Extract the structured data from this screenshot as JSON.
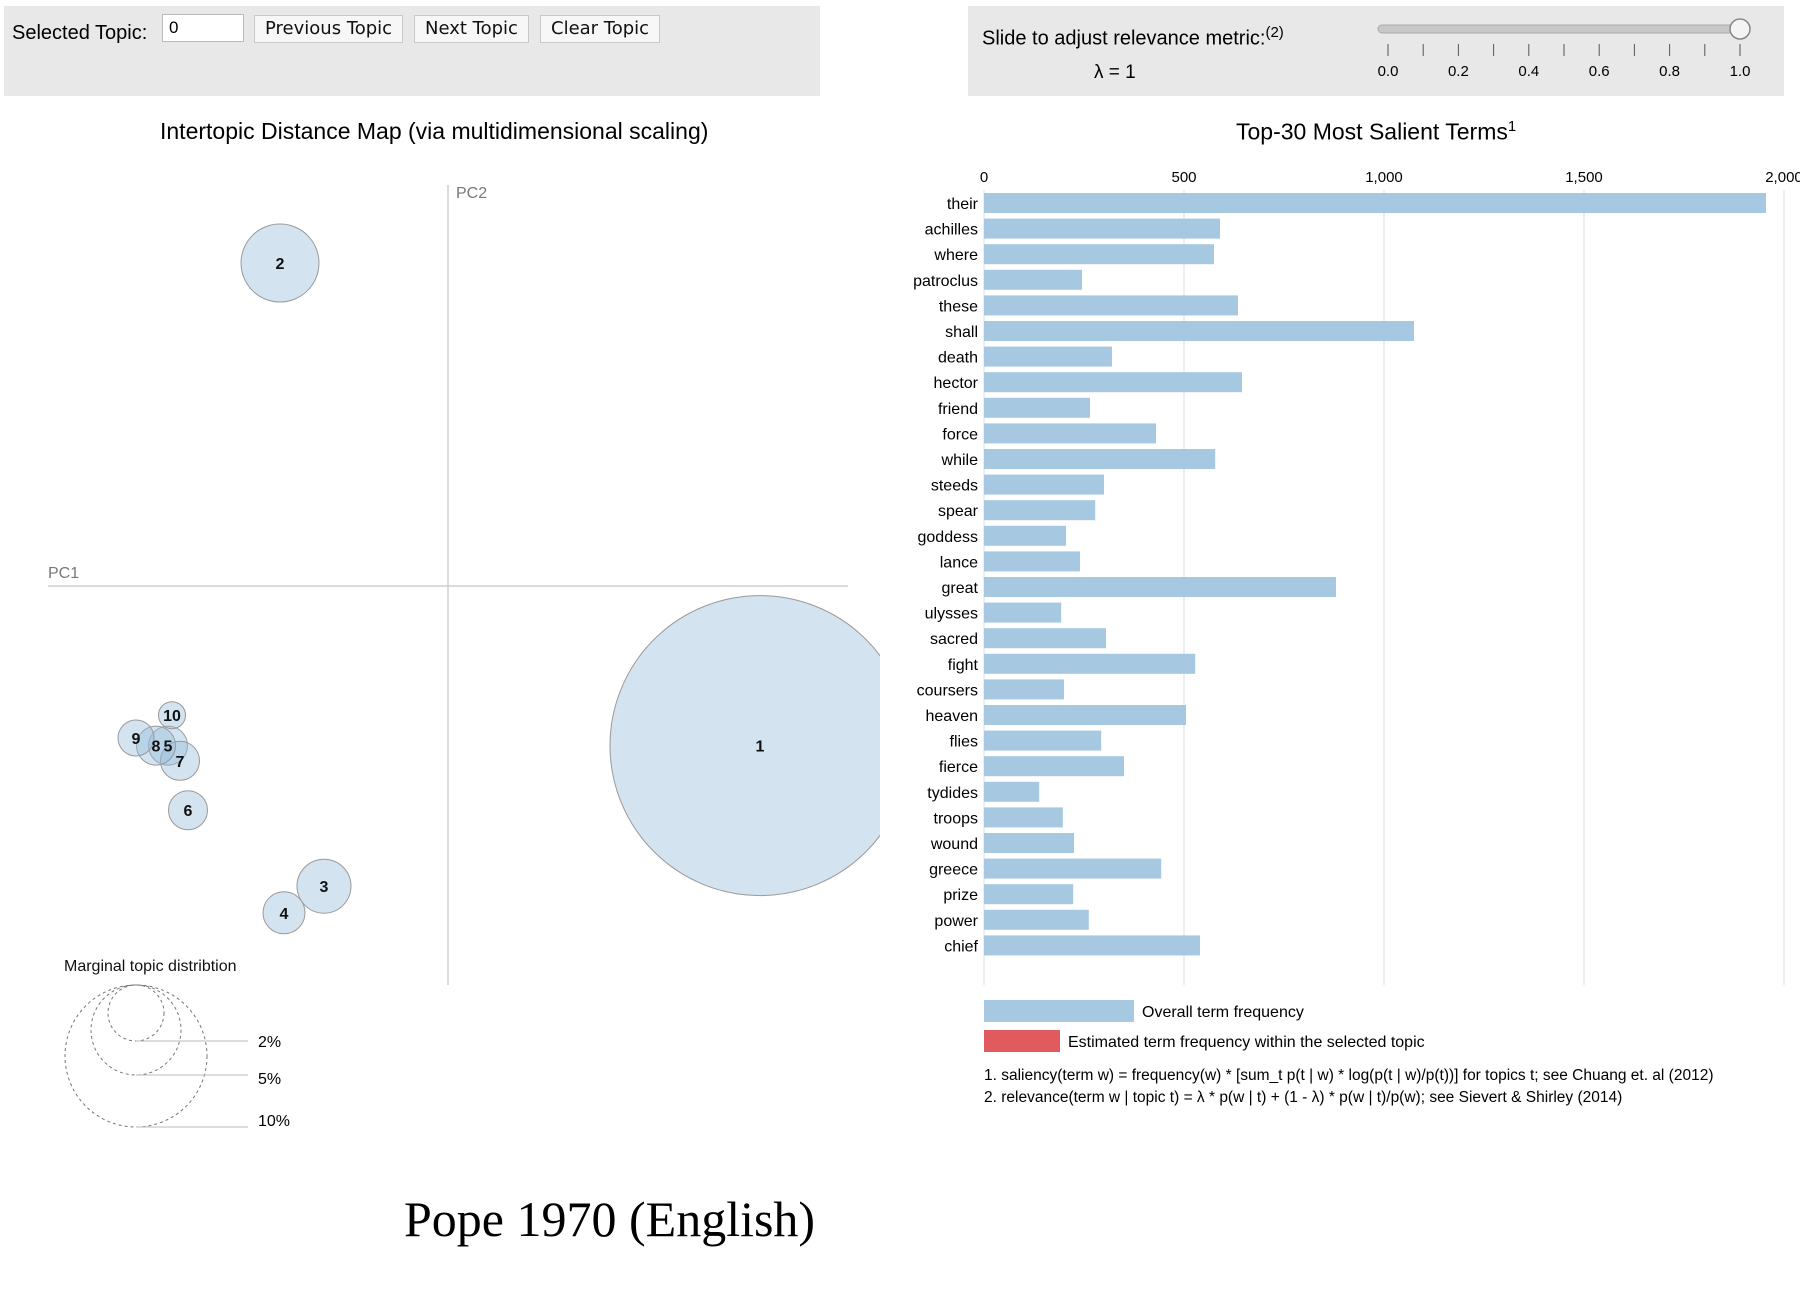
{
  "controls": {
    "selected_topic_label": "Selected Topic:",
    "selected_topic_value": "0",
    "previous_label": "Previous Topic",
    "next_label": "Next Topic",
    "clear_label": "Clear Topic"
  },
  "slider": {
    "label": "Slide to adjust relevance metric:",
    "label_note": "(2)",
    "lambda_text": "λ = 1",
    "value": 1.0,
    "ticks": [
      "0.0",
      "0.2",
      "0.4",
      "0.6",
      "0.8",
      "1.0"
    ]
  },
  "left_title": "Intertopic Distance Map (via multidimensional scaling)",
  "right_title": "Top-30 Most Salient Terms",
  "right_title_note": "1",
  "map": {
    "pc1_label": "PC1",
    "pc2_label": "PC2",
    "topics": [
      {
        "id": "1",
        "x": 0.78,
        "y": -0.42,
        "size": 1.0
      },
      {
        "id": "2",
        "x": -0.42,
        "y": 0.85,
        "size": 0.26
      },
      {
        "id": "3",
        "x": -0.31,
        "y": -0.79,
        "size": 0.18
      },
      {
        "id": "4",
        "x": -0.41,
        "y": -0.86,
        "size": 0.14
      },
      {
        "id": "5",
        "x": -0.7,
        "y": -0.42,
        "size": 0.13
      },
      {
        "id": "6",
        "x": -0.65,
        "y": -0.59,
        "size": 0.13
      },
      {
        "id": "7",
        "x": -0.67,
        "y": -0.46,
        "size": 0.13
      },
      {
        "id": "8",
        "x": -0.73,
        "y": -0.42,
        "size": 0.13
      },
      {
        "id": "9",
        "x": -0.78,
        "y": -0.4,
        "size": 0.12
      },
      {
        "id": "10",
        "x": -0.69,
        "y": -0.34,
        "size": 0.09
      }
    ],
    "marginal_title": "Marginal topic distribtion",
    "marginal_labels": [
      "2%",
      "5%",
      "10%"
    ]
  },
  "chart_data": {
    "type": "bar",
    "title": "Top-30 Most Salient Terms",
    "categories": [
      "their",
      "achilles",
      "where",
      "patroclus",
      "these",
      "shall",
      "death",
      "hector",
      "friend",
      "force",
      "while",
      "steeds",
      "spear",
      "goddess",
      "lance",
      "great",
      "ulysses",
      "sacred",
      "fight",
      "coursers",
      "heaven",
      "flies",
      "fierce",
      "tydides",
      "troops",
      "wound",
      "greece",
      "prize",
      "power",
      "chief"
    ],
    "series": [
      {
        "name": "Overall term frequency",
        "color": "#a6c8e0",
        "values": [
          1955,
          590,
          575,
          245,
          635,
          1075,
          320,
          645,
          265,
          430,
          578,
          300,
          278,
          205,
          240,
          880,
          193,
          305,
          528,
          200,
          505,
          293,
          350,
          138,
          197,
          225,
          443,
          223,
          262,
          540
        ]
      }
    ],
    "xlim": [
      0,
      2000
    ],
    "xticks": [
      "0",
      "500",
      "1,000",
      "1,500",
      "2,000"
    ],
    "grid": true
  },
  "legend": {
    "overall": "Overall term frequency",
    "estimated": "Estimated term frequency within the selected topic",
    "overall_color": "#a6c8e0",
    "estimated_color": "#e05a5e"
  },
  "footnotes": {
    "note1": "1. saliency(term w) = frequency(w) * [sum_t p(t | w) * log(p(t | w)/p(t))] for topics t; see Chuang et. al (2012)",
    "note2": "2. relevance(term w | topic t) = λ * p(w | t) + (1 - λ) * p(w | t)/p(w); see Sievert & Shirley (2014)"
  },
  "caption": "Pope 1970 (English)"
}
